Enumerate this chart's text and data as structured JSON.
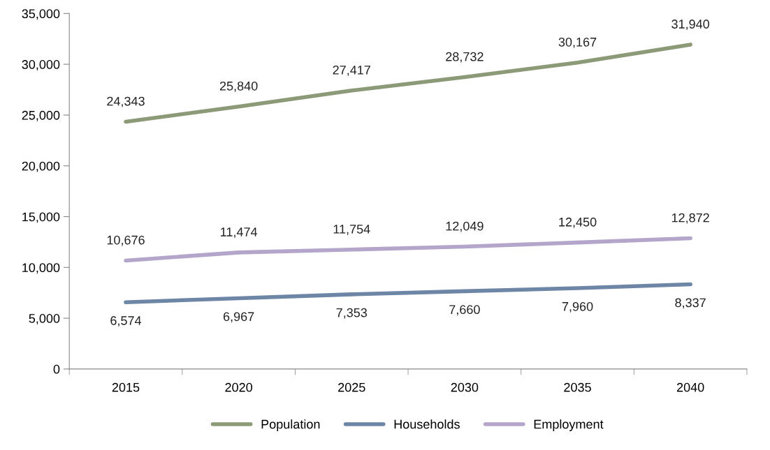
{
  "chart_data": {
    "type": "line",
    "categories": [
      "2015",
      "2020",
      "2025",
      "2030",
      "2035",
      "2040"
    ],
    "series": [
      {
        "name": "Population",
        "color": "#8c9a78",
        "values": [
          24343,
          25840,
          27417,
          28732,
          30167,
          31940
        ],
        "value_labels": [
          "24,343",
          "25,840",
          "27,417",
          "28,732",
          "30,167",
          "31,940"
        ]
      },
      {
        "name": "Households",
        "color": "#6d86a6",
        "values": [
          6574,
          6967,
          7353,
          7660,
          7960,
          8337
        ],
        "value_labels": [
          "6,574",
          "6,967",
          "7,353",
          "7,660",
          "7,960",
          "8,337"
        ]
      },
      {
        "name": "Employment",
        "color": "#b4a5cb",
        "values": [
          10676,
          11474,
          11754,
          12049,
          12450,
          12872
        ],
        "value_labels": [
          "10,676",
          "11,474",
          "11,754",
          "12,049",
          "12,450",
          "12,872"
        ]
      }
    ],
    "ylim": [
      0,
      35000
    ],
    "yticks": [
      {
        "value": 0,
        "label": "0"
      },
      {
        "value": 5000,
        "label": "5,000"
      },
      {
        "value": 10000,
        "label": "10,000"
      },
      {
        "value": 15000,
        "label": "15,000"
      },
      {
        "value": 20000,
        "label": "20,000"
      },
      {
        "value": 25000,
        "label": "25,000"
      },
      {
        "value": 30000,
        "label": "30,000"
      },
      {
        "value": 35000,
        "label": "35,000"
      }
    ],
    "grid": false,
    "legend": "bottom",
    "marker": "none",
    "line_style": "solid"
  }
}
